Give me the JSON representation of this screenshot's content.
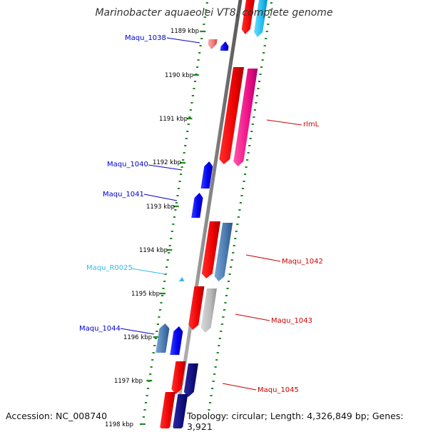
{
  "title": "Marinobacter aquaeolei VT8, complete genome",
  "accession": "Accession: NC_008740",
  "topology": "Topology: circular; Length: 4,326,849 bp; Genes: 3,921",
  "colors": {
    "backbone": "#808080",
    "ticks": "#228822",
    "forward_label": "#0000cc",
    "reverse_label": "#cc0000",
    "rna_label": "#33bbee"
  },
  "ticks": [
    "1189 kbp",
    "1190 kbp",
    "1191 kbp",
    "1192 kbp",
    "1193 kbp",
    "1194 kbp",
    "1195 kbp",
    "1196 kbp",
    "1197 kbp",
    "1198 kbp"
  ],
  "genes": [
    {
      "label": "Maqu_1038",
      "strand": "+",
      "color": "#0000ee"
    },
    {
      "label": "rlmL",
      "strand": "-",
      "color": "#ee0000"
    },
    {
      "label": "Maqu_1040",
      "strand": "+",
      "color": "#0000ee"
    },
    {
      "label": "Maqu_1041",
      "strand": "+",
      "color": "#0000ee"
    },
    {
      "label": "Maqu_1042",
      "strand": "-",
      "color": "#ee0000"
    },
    {
      "label": "Maqu_R0025",
      "strand": "+",
      "color": "#33bbee"
    },
    {
      "label": "Maqu_1043",
      "strand": "-",
      "color": "#ee0000"
    },
    {
      "label": "Maqu_1044",
      "strand": "+",
      "color": "#0000ee"
    },
    {
      "label": "Maqu_1045",
      "strand": "-",
      "color": "#ee0000"
    }
  ]
}
